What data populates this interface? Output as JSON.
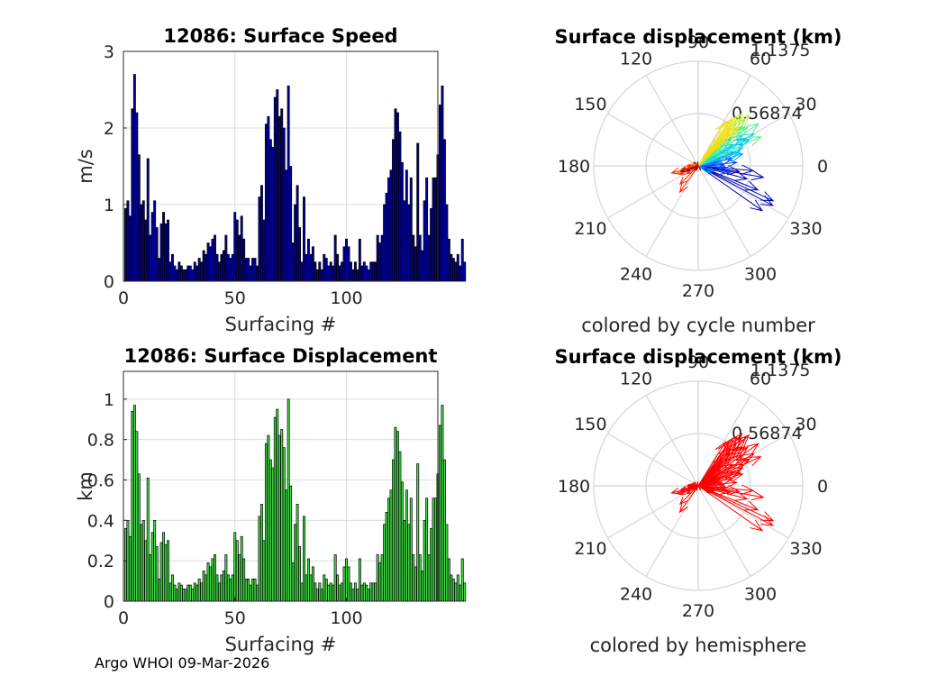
{
  "chart_data": [
    {
      "type": "bar",
      "title": "12086: Surface Speed",
      "xlabel": "Surfacing #",
      "ylabel": "m/s",
      "xlim": [
        0,
        141
      ],
      "ylim": [
        0,
        3
      ],
      "xticks": [
        0,
        50,
        100
      ],
      "yticks": [
        0,
        1,
        2,
        3
      ],
      "bar_color": "#0000a0",
      "values": [
        0.95,
        1.05,
        0.85,
        2.25,
        2.7,
        2.2,
        1.65,
        1.0,
        1.05,
        0.8,
        1.6,
        0.6,
        0.9,
        1.05,
        0.7,
        0.3,
        0.75,
        0.9,
        0.75,
        0.8,
        0.25,
        0.35,
        0.2,
        0.15,
        0.25,
        0.2,
        0.15,
        0.15,
        0.2,
        0.2,
        0.15,
        0.25,
        0.2,
        0.3,
        0.25,
        0.4,
        0.35,
        0.5,
        0.45,
        0.55,
        0.6,
        0.35,
        0.25,
        0.35,
        0.4,
        0.6,
        0.35,
        0.3,
        0.35,
        0.9,
        0.8,
        0.6,
        0.85,
        0.55,
        0.3,
        0.3,
        0.2,
        0.3,
        0.3,
        0.2,
        1.1,
        1.25,
        0.8,
        2.05,
        2.15,
        1.85,
        1.75,
        2.4,
        2.5,
        2.15,
        2.25,
        2.0,
        1.45,
        2.55,
        1.5,
        0.5,
        1.0,
        1.25,
        0.7,
        0.25,
        1.1,
        0.35,
        0.55,
        0.35,
        0.45,
        0.25,
        0.15,
        0.25,
        0.15,
        0.35,
        0.3,
        0.2,
        0.25,
        0.2,
        0.6,
        0.35,
        0.2,
        0.25,
        0.45,
        0.55,
        0.45,
        0.25,
        0.15,
        0.25,
        0.15,
        0.55,
        0.2,
        0.25,
        0.2,
        0.15,
        0.25,
        0.25,
        0.25,
        0.6,
        0.5,
        0.6,
        1.0,
        1.15,
        1.35,
        1.45,
        1.85,
        2.25,
        2.2,
        1.95,
        1.55,
        1.05,
        1.45,
        1.0,
        1.35,
        0.6,
        0.45,
        1.8,
        0.6,
        0.4,
        1.05,
        1.35,
        0.6,
        0.95,
        1.35,
        1.35,
        1.65,
        2.3,
        2.55,
        1.85,
        1.0,
        0.55,
        0.35,
        0.3,
        0.25,
        0.35,
        0.2,
        0.55,
        0.25
      ]
    },
    {
      "type": "bar",
      "title": "12086: Surface Displacement",
      "xlabel": "Surfacing #",
      "ylabel": "km",
      "xlim": [
        0,
        141
      ],
      "ylim": [
        0,
        1.1375
      ],
      "xticks": [
        0,
        50,
        100
      ],
      "yticks": [
        0,
        0.2,
        0.4,
        0.6,
        0.8,
        1
      ],
      "bar_color": "#46e04a",
      "values": [
        0.36,
        0.4,
        0.32,
        0.94,
        0.97,
        0.84,
        0.63,
        0.38,
        0.4,
        0.3,
        0.61,
        0.23,
        0.34,
        0.4,
        0.27,
        0.11,
        0.29,
        0.34,
        0.28,
        0.3,
        0.09,
        0.13,
        0.08,
        0.06,
        0.09,
        0.08,
        0.06,
        0.06,
        0.08,
        0.08,
        0.06,
        0.09,
        0.08,
        0.11,
        0.09,
        0.15,
        0.13,
        0.19,
        0.17,
        0.21,
        0.23,
        0.13,
        0.09,
        0.13,
        0.15,
        0.23,
        0.13,
        0.11,
        0.13,
        0.34,
        0.3,
        0.23,
        0.32,
        0.21,
        0.11,
        0.11,
        0.08,
        0.11,
        0.11,
        0.08,
        0.42,
        0.48,
        0.3,
        0.78,
        0.82,
        0.7,
        0.66,
        0.91,
        0.95,
        0.82,
        0.85,
        0.76,
        0.55,
        1.0,
        0.57,
        0.19,
        0.38,
        0.48,
        0.27,
        0.09,
        0.42,
        0.13,
        0.21,
        0.13,
        0.17,
        0.09,
        0.06,
        0.09,
        0.06,
        0.13,
        0.11,
        0.08,
        0.09,
        0.08,
        0.23,
        0.13,
        0.08,
        0.09,
        0.17,
        0.21,
        0.17,
        0.09,
        0.06,
        0.09,
        0.06,
        0.21,
        0.08,
        0.09,
        0.08,
        0.06,
        0.09,
        0.09,
        0.09,
        0.23,
        0.19,
        0.23,
        0.38,
        0.44,
        0.51,
        0.55,
        0.7,
        0.86,
        0.84,
        0.74,
        0.59,
        0.4,
        0.55,
        0.38,
        0.51,
        0.23,
        0.17,
        0.68,
        0.23,
        0.15,
        0.4,
        0.51,
        0.23,
        0.36,
        0.51,
        0.51,
        0.63,
        0.87,
        0.97,
        0.7,
        0.38,
        0.21,
        0.13,
        0.11,
        0.09,
        0.13,
        0.08,
        0.21,
        0.09
      ]
    },
    {
      "type": "polar",
      "title": "Surface displacement (km)",
      "caption": "colored by cycle number",
      "rlim": [
        0,
        1.1375
      ],
      "r_tick_labels": [
        "0.56874",
        "1.1375"
      ],
      "theta_tick_labels": [
        "0",
        "30",
        "60",
        "90",
        "120",
        "150",
        "180",
        "210",
        "240",
        "270",
        "300",
        "330"
      ],
      "coloring": "cycle",
      "colormap_by_cycle": [
        "#0000b0",
        "#0044ff",
        "#0099ff",
        "#00d4e8",
        "#55ee88",
        "#c8f030",
        "#ffd800",
        "#ff8800",
        "#ff2800",
        "#9a0000"
      ],
      "vectors_km_deg": [
        [
          0.6,
          -5
        ],
        [
          0.72,
          -10
        ],
        [
          0.55,
          -15
        ],
        [
          0.9,
          -25
        ],
        [
          0.92,
          -28
        ],
        [
          0.85,
          -35
        ],
        [
          0.7,
          -22
        ],
        [
          0.45,
          -8
        ],
        [
          0.42,
          5
        ],
        [
          0.38,
          12
        ],
        [
          0.3,
          -3
        ],
        [
          0.25,
          18
        ],
        [
          0.2,
          10
        ],
        [
          0.35,
          -12
        ],
        [
          0.28,
          2
        ],
        [
          0.15,
          -30
        ],
        [
          0.22,
          25
        ],
        [
          0.18,
          -18
        ],
        [
          0.26,
          8
        ],
        [
          0.4,
          20
        ],
        [
          0.5,
          15
        ],
        [
          0.55,
          25
        ],
        [
          0.6,
          30
        ],
        [
          0.52,
          22
        ],
        [
          0.58,
          35
        ],
        [
          0.62,
          28
        ],
        [
          0.46,
          40
        ],
        [
          0.48,
          18
        ],
        [
          0.44,
          32
        ],
        [
          0.7,
          30
        ],
        [
          0.75,
          25
        ],
        [
          0.8,
          35
        ],
        [
          0.66,
          40
        ],
        [
          0.72,
          45
        ],
        [
          0.68,
          38
        ],
        [
          0.64,
          42
        ],
        [
          0.3,
          35
        ],
        [
          0.35,
          45
        ],
        [
          0.4,
          50
        ],
        [
          0.78,
          45
        ],
        [
          0.74,
          50
        ],
        [
          0.7,
          48
        ],
        [
          0.68,
          52
        ],
        [
          0.58,
          55
        ],
        [
          0.62,
          48
        ],
        [
          0.56,
          58
        ],
        [
          0.6,
          44
        ],
        [
          0.5,
          47
        ],
        [
          0.54,
          50
        ],
        [
          0.64,
          54
        ],
        [
          0.08,
          170
        ],
        [
          0.1,
          180
        ],
        [
          0.12,
          190
        ],
        [
          0.09,
          200
        ],
        [
          0.11,
          175
        ],
        [
          0.07,
          160
        ],
        [
          0.06,
          210
        ],
        [
          0.08,
          185
        ],
        [
          0.1,
          195
        ],
        [
          0.25,
          200
        ],
        [
          0.3,
          195
        ],
        [
          0.22,
          205
        ],
        [
          0.35,
          235
        ],
        [
          0.28,
          225
        ],
        [
          0.15,
          215
        ],
        [
          0.18,
          190
        ],
        [
          0.12,
          180
        ],
        [
          0.2,
          198
        ],
        [
          0.14,
          205
        ],
        [
          0.06,
          230
        ],
        [
          0.05,
          250
        ],
        [
          0.06,
          140
        ],
        [
          0.04,
          100
        ],
        [
          0.05,
          300
        ]
      ]
    },
    {
      "type": "polar",
      "title": "Surface displacement (km)",
      "caption": "colored by hemisphere",
      "rlim": [
        0,
        1.1375
      ],
      "r_tick_labels": [
        "0.56874",
        "1.1375"
      ],
      "theta_tick_labels": [
        "0",
        "30",
        "60",
        "90",
        "120",
        "150",
        "180",
        "210",
        "240",
        "270",
        "300",
        "330"
      ],
      "coloring": "hemisphere",
      "vector_color": "#ff0000",
      "vectors_km_deg": [
        [
          0.6,
          -5
        ],
        [
          0.72,
          -10
        ],
        [
          0.55,
          -15
        ],
        [
          0.9,
          -25
        ],
        [
          0.92,
          -28
        ],
        [
          0.85,
          -35
        ],
        [
          0.7,
          -22
        ],
        [
          0.45,
          -8
        ],
        [
          0.42,
          5
        ],
        [
          0.38,
          12
        ],
        [
          0.3,
          -3
        ],
        [
          0.25,
          18
        ],
        [
          0.2,
          10
        ],
        [
          0.35,
          -12
        ],
        [
          0.28,
          2
        ],
        [
          0.15,
          -30
        ],
        [
          0.22,
          25
        ],
        [
          0.18,
          -18
        ],
        [
          0.26,
          8
        ],
        [
          0.4,
          20
        ],
        [
          0.5,
          15
        ],
        [
          0.55,
          25
        ],
        [
          0.6,
          30
        ],
        [
          0.52,
          22
        ],
        [
          0.58,
          35
        ],
        [
          0.62,
          28
        ],
        [
          0.46,
          40
        ],
        [
          0.48,
          18
        ],
        [
          0.44,
          32
        ],
        [
          0.7,
          30
        ],
        [
          0.75,
          25
        ],
        [
          0.8,
          35
        ],
        [
          0.66,
          40
        ],
        [
          0.72,
          45
        ],
        [
          0.68,
          38
        ],
        [
          0.64,
          42
        ],
        [
          0.3,
          35
        ],
        [
          0.35,
          45
        ],
        [
          0.4,
          50
        ],
        [
          0.78,
          45
        ],
        [
          0.74,
          50
        ],
        [
          0.7,
          48
        ],
        [
          0.68,
          52
        ],
        [
          0.58,
          55
        ],
        [
          0.62,
          48
        ],
        [
          0.56,
          58
        ],
        [
          0.6,
          44
        ],
        [
          0.5,
          47
        ],
        [
          0.54,
          50
        ],
        [
          0.64,
          54
        ],
        [
          0.08,
          170
        ],
        [
          0.1,
          180
        ],
        [
          0.12,
          190
        ],
        [
          0.09,
          200
        ],
        [
          0.11,
          175
        ],
        [
          0.07,
          160
        ],
        [
          0.06,
          210
        ],
        [
          0.08,
          185
        ],
        [
          0.1,
          195
        ],
        [
          0.25,
          200
        ],
        [
          0.3,
          195
        ],
        [
          0.22,
          205
        ],
        [
          0.35,
          235
        ],
        [
          0.28,
          225
        ],
        [
          0.15,
          215
        ],
        [
          0.18,
          190
        ],
        [
          0.12,
          180
        ],
        [
          0.2,
          198
        ],
        [
          0.14,
          205
        ],
        [
          0.06,
          230
        ],
        [
          0.05,
          250
        ],
        [
          0.06,
          140
        ],
        [
          0.04,
          100
        ],
        [
          0.05,
          300
        ]
      ]
    }
  ],
  "footer": {
    "text": "Argo WHOI 09-Mar-2026"
  }
}
